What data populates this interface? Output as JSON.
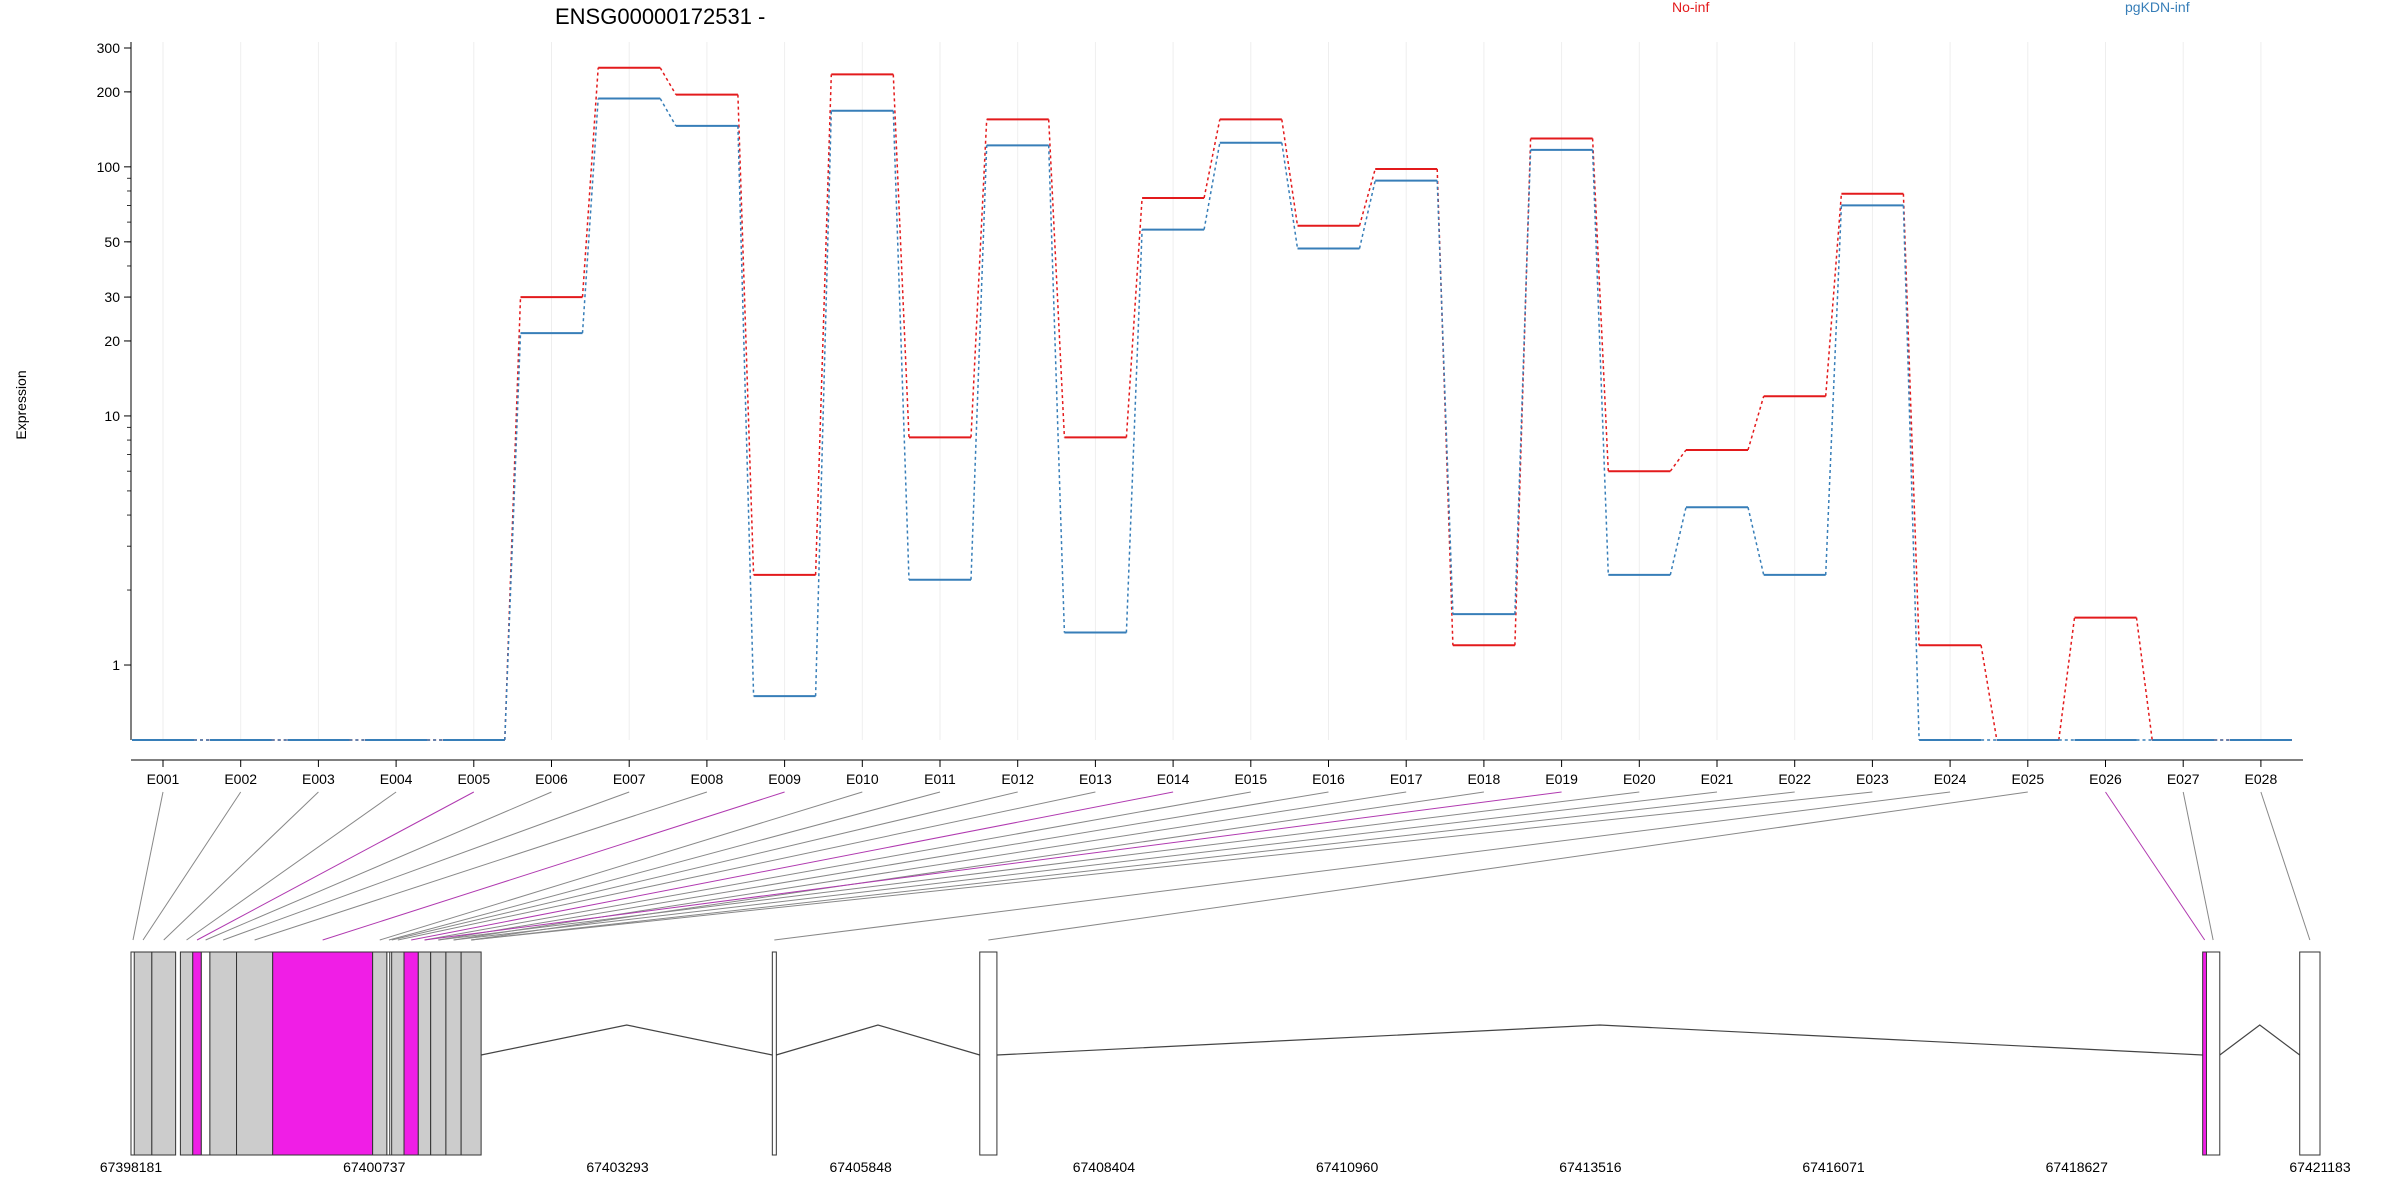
{
  "chart_data": {
    "type": "line",
    "title": "ENSG00000172531 -",
    "ylabel": "Expression",
    "y_scale": "log",
    "ylim": [
      0.5,
      300
    ],
    "y_ticks": [
      "300",
      "200",
      "100",
      "50",
      "30",
      "20",
      "10",
      "1"
    ],
    "y_tick_values": [
      300,
      200,
      100,
      50,
      30,
      20,
      10,
      1
    ],
    "legend": [
      {
        "name": "No-inf",
        "color": "#e31a1c"
      },
      {
        "name": "pgKDN-inf",
        "color": "#377eb8"
      }
    ],
    "categories": [
      "E001",
      "E002",
      "E003",
      "E004",
      "E005",
      "E006",
      "E007",
      "E008",
      "E009",
      "E010",
      "E011",
      "E012",
      "E013",
      "E014",
      "E015",
      "E016",
      "E017",
      "E018",
      "E019",
      "E020",
      "E021",
      "E022",
      "E023",
      "E024",
      "E025",
      "E026",
      "E027",
      "E028"
    ],
    "series": [
      {
        "name": "No-inf",
        "color": "#e31a1c",
        "values": [
          0.5,
          0.5,
          0.5,
          0.5,
          0.5,
          30,
          250,
          195,
          2.3,
          235,
          8.2,
          155,
          8.2,
          75,
          155,
          58,
          98,
          1.2,
          130,
          6,
          7.3,
          12,
          78,
          1.2,
          0.5,
          1.55,
          0.5,
          0.5
        ]
      },
      {
        "name": "pgKDN-inf",
        "color": "#377eb8",
        "values": [
          0.5,
          0.5,
          0.5,
          0.5,
          0.5,
          21.5,
          188,
          146,
          0.75,
          168,
          2.2,
          122,
          1.35,
          56,
          125,
          47,
          88,
          1.6,
          117,
          2.3,
          4.3,
          2.3,
          70,
          0.5,
          0.5,
          0.5,
          0.5,
          0.5
        ]
      }
    ],
    "gene_model": {
      "coordinate_labels": [
        "67398181",
        "67400737",
        "67403293",
        "67405848",
        "67408404",
        "67410960",
        "67413516",
        "67416071",
        "67418627",
        "67421183"
      ],
      "coordinate_values": [
        67398181,
        67400737,
        67403293,
        67405848,
        67408404,
        67410960,
        67413516,
        67416071,
        67418627,
        67421183
      ],
      "exon_color": "#cccccc",
      "highlight_color": "#f01ee6",
      "exons": [
        {
          "id": "E001",
          "start": 67398181,
          "end": 67398210,
          "highlight": false
        },
        {
          "id": "E002",
          "start": 67398215,
          "end": 67398400,
          "highlight": false
        },
        {
          "id": "E003",
          "start": 67398400,
          "end": 67398650,
          "highlight": false
        },
        {
          "id": "E004",
          "start": 67398700,
          "end": 67398830,
          "highlight": false
        },
        {
          "id": "E005",
          "start": 67398830,
          "end": 67398920,
          "highlight": true
        },
        {
          "id": "E006",
          "start": 67398920,
          "end": 67399010,
          "highlight": false
        },
        {
          "id": "E007",
          "start": 67399010,
          "end": 67399290,
          "highlight": false
        },
        {
          "id": "E008",
          "start": 67399290,
          "end": 67399670,
          "highlight": false
        },
        {
          "id": "E009",
          "start": 67399670,
          "end": 67400720,
          "highlight": true
        },
        {
          "id": "E010",
          "start": 67400720,
          "end": 67400870,
          "highlight": false
        },
        {
          "id": "E011",
          "start": 67400870,
          "end": 67400900,
          "highlight": false
        },
        {
          "id": "E012",
          "start": 67400900,
          "end": 67400920,
          "highlight": false
        },
        {
          "id": "E013",
          "start": 67400920,
          "end": 67401050,
          "highlight": false
        },
        {
          "id": "E014",
          "start": 67401050,
          "end": 67401200,
          "highlight": true
        },
        {
          "id": "E015",
          "start": 67401200,
          "end": 67401330,
          "highlight": false
        },
        {
          "id": "E016",
          "start": 67401330,
          "end": 67401490,
          "highlight": false
        },
        {
          "id": "E017",
          "start": 67401490,
          "end": 67401650,
          "highlight": false
        },
        {
          "id": "E018",
          "start": 67401650,
          "end": 67401860,
          "highlight": false
        },
        {
          "id": "E019",
          "start": 67404920,
          "end": 67404960,
          "highlight": false
        },
        {
          "id": "E020",
          "start": 67407100,
          "end": 67407280,
          "highlight": false
        },
        {
          "id": "E021",
          "start": 67419950,
          "end": 67419990,
          "highlight": true
        },
        {
          "id": "E022",
          "start": 67419990,
          "end": 67420130,
          "highlight": false
        },
        {
          "id": "E023",
          "start": 67420970,
          "end": 67421183,
          "highlight": false
        }
      ],
      "introns": [
        {
          "from": 67401860,
          "to": 67404920
        },
        {
          "from": 67404960,
          "to": 67407100
        },
        {
          "from": 67407280,
          "to": 67419950
        },
        {
          "from": 67420130,
          "to": 67420970
        }
      ],
      "connectors": [
        {
          "category": "E001",
          "exon": "E001",
          "highlight": false
        },
        {
          "category": "E002",
          "exon": "E002",
          "highlight": false
        },
        {
          "category": "E003",
          "exon": "E003",
          "highlight": false
        },
        {
          "category": "E004",
          "exon": "E004",
          "highlight": false
        },
        {
          "category": "E005",
          "exon": "E005",
          "highlight": true
        },
        {
          "category": "E006",
          "exon": "E006",
          "highlight": false
        },
        {
          "category": "E007",
          "exon": "E007",
          "highlight": false
        },
        {
          "category": "E008",
          "exon": "E008",
          "highlight": false
        },
        {
          "category": "E009",
          "exon": "E009",
          "highlight": true
        },
        {
          "category": "E010",
          "exon": "E010",
          "highlight": false
        },
        {
          "category": "E011",
          "exon": "E011",
          "highlight": false
        },
        {
          "category": "E012",
          "exon": "E012",
          "highlight": false
        },
        {
          "category": "E013",
          "exon": "E013",
          "highlight": false
        },
        {
          "category": "E014",
          "exon": "E014",
          "highlight": true
        },
        {
          "category": "E015",
          "exon": "E015",
          "highlight": false
        },
        {
          "category": "E016",
          "exon": "E016",
          "highlight": false
        },
        {
          "category": "E017",
          "exon": "E017",
          "highlight": false
        },
        {
          "category": "E018",
          "exon": "E018",
          "highlight": false
        },
        {
          "category": "E019",
          "exon": "E015",
          "highlight": true
        },
        {
          "category": "E020",
          "exon": "E016",
          "highlight": false
        },
        {
          "category": "E021",
          "exon": "E017",
          "highlight": false
        },
        {
          "category": "E022",
          "exon": "E018",
          "highlight": false
        },
        {
          "category": "E023",
          "exon": "E018",
          "highlight": false
        },
        {
          "category": "E024",
          "exon": "E019",
          "highlight": false
        },
        {
          "category": "E025",
          "exon": "E020",
          "highlight": false
        },
        {
          "category": "E026",
          "exon": "E021",
          "highlight": true
        },
        {
          "category": "E027",
          "exon": "E022",
          "highlight": false
        },
        {
          "category": "E028",
          "exon": "E023",
          "highlight": false
        }
      ]
    }
  }
}
